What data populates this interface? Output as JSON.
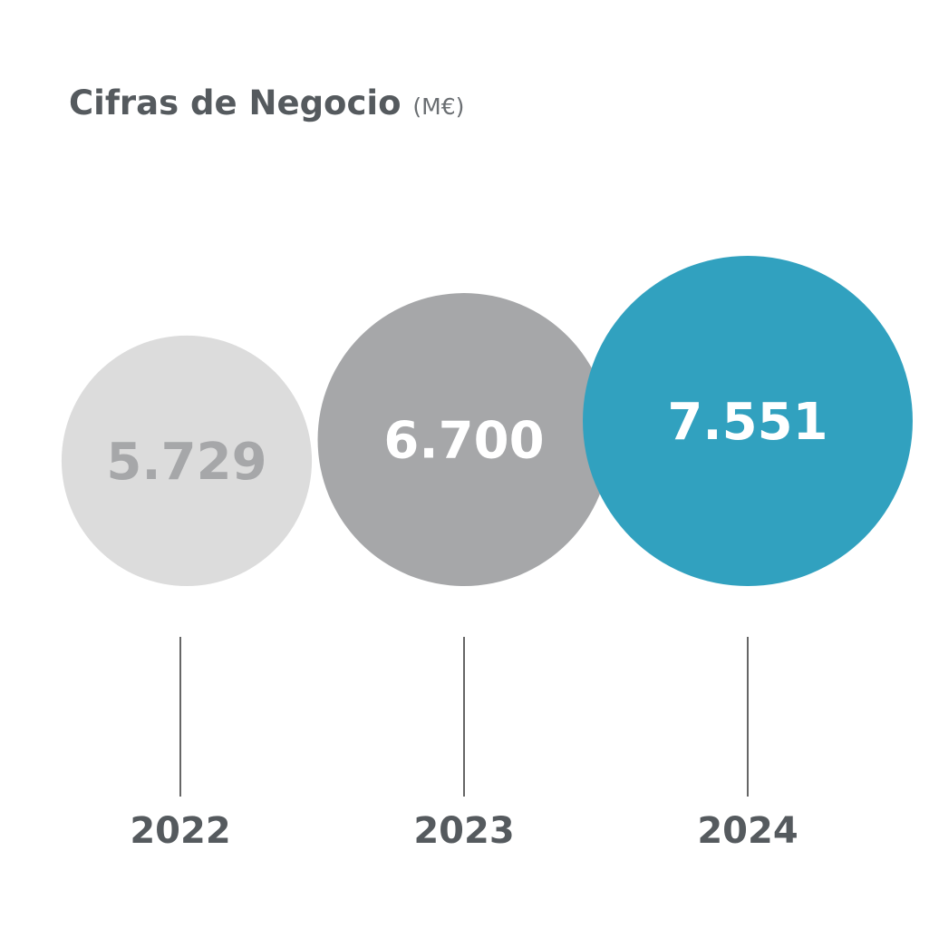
{
  "chart_data": {
    "type": "bubble",
    "title": "Cifras de Negocio",
    "unit": "(M€)",
    "categories": [
      "2022",
      "2023",
      "2024"
    ],
    "values": [
      5729,
      6700,
      7551
    ],
    "value_labels": [
      "5.729",
      "6.700",
      "7.551"
    ],
    "colors": [
      "#dcdcdc",
      "#a6a7a9",
      "#31a1bf"
    ],
    "label_colors": [
      "#a6a7a9",
      "#ffffff",
      "#ffffff"
    ]
  }
}
